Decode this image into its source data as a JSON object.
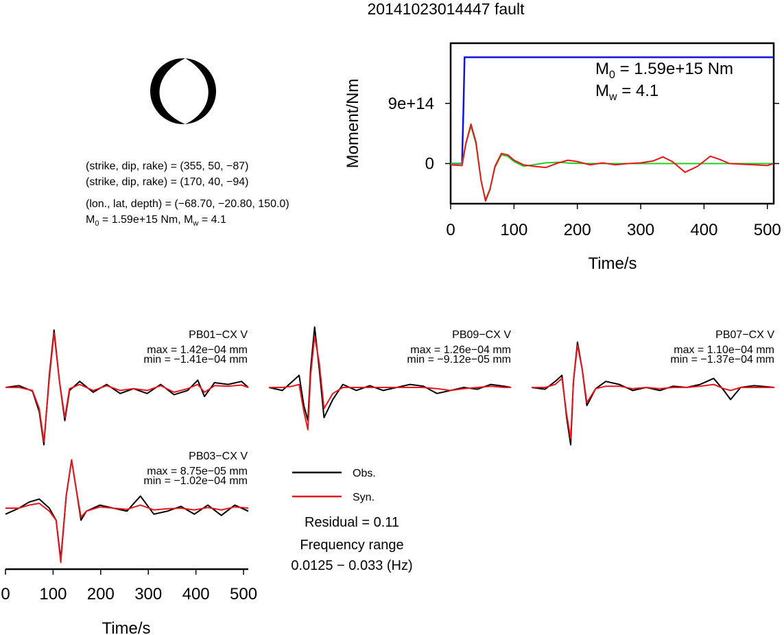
{
  "title": "20141023014447 fault",
  "colors": {
    "obs": "#000000",
    "syn": "#e8161b",
    "stf": "#1212d8",
    "fit": "#22cc22",
    "axis": "#000000"
  },
  "focal": {
    "lines": [
      "(strike, dip, rake) = (355, 50, −87)",
      "(strike, dip, rake) = (170, 40, −94)",
      "(lon., lat, depth) = (−68.70, −20.80, 150.0)"
    ],
    "moment_prefix": "M",
    "moment_sub": "0",
    "moment_mid": " = 1.59e+15 Nm, M",
    "moment_sub2": "w",
    "moment_end": " = 4.1"
  },
  "moment_panel": {
    "m0_main": "M",
    "m0_sub": "0",
    "m0_rest": " = 1.59e+15 Nm",
    "mw_main": "M",
    "mw_sub": "w",
    "mw_rest": " = 4.1"
  },
  "stations": [
    {
      "name": "PB01−CX V",
      "max": "max = 1.42e−04 mm",
      "min": "min = −1.41e−04 mm"
    },
    {
      "name": "PB09−CX V",
      "max": "max = 1.26e−04 mm",
      "min": "min = −9.12e−05 mm"
    },
    {
      "name": "PB07−CX V",
      "max": "max = 1.10e−04 mm",
      "min": "min = −1.37e−04 mm"
    },
    {
      "name": "PB03−CX V",
      "max": "max = 8.75e−05 mm",
      "min": "min = −1.02e−04 mm"
    }
  ],
  "legend": {
    "obs": "Obs.",
    "syn": "Syn."
  },
  "residual": "Residual = 0.11",
  "freq_label": "Frequency range",
  "freq_value": "0.0125 − 0.033 (Hz)",
  "chart_data": [
    {
      "type": "line",
      "xlabel": "Time/s",
      "ylabel": "Moment/Nm",
      "xlim": [
        0,
        510
      ],
      "ylim": [
        -600000000000000,
        1800000000000000
      ],
      "x_ticks": [
        0,
        100,
        200,
        300,
        400,
        500
      ],
      "x_tick_labels": [
        "0",
        "100",
        "200",
        "300",
        "400",
        "500"
      ],
      "y_ticks": [
        0,
        900000000000000
      ],
      "y_tick_labels": [
        "0",
        "9e+14"
      ],
      "series": [
        {
          "role": "cumulative_moment",
          "color": "#1212d8",
          "x": [
            0,
            18,
            20,
            22,
            510
          ],
          "y": [
            0,
            0,
            750000000000000,
            1590000000000000,
            1590000000000000
          ]
        },
        {
          "role": "moment_rate_model",
          "color": "#22cc22",
          "x": [
            0,
            18,
            24,
            32,
            40,
            48,
            55,
            62,
            70,
            80,
            90,
            100,
            115,
            130,
            150,
            170,
            190,
            220,
            260,
            300,
            510
          ],
          "y": [
            0,
            0,
            300000000000000,
            560000000000000,
            300000000000000,
            -250000000000000,
            -540000000000000,
            -380000000000000,
            -60000000000000,
            130000000000000,
            110000000000000,
            30000000000000,
            -40000000000000,
            -20000000000000,
            10000000000000,
            20000000000000,
            5000000000000,
            0,
            0,
            0,
            0
          ]
        },
        {
          "role": "moment_rate_observed",
          "color": "#e8161b",
          "x": [
            0,
            18,
            24,
            32,
            40,
            48,
            55,
            62,
            70,
            80,
            90,
            100,
            115,
            130,
            150,
            170,
            185,
            200,
            220,
            240,
            260,
            280,
            300,
            320,
            335,
            350,
            370,
            390,
            410,
            425,
            440,
            460,
            480,
            500,
            510
          ],
          "y": [
            -20000000000000,
            -30000000000000,
            300000000000000,
            590000000000000,
            320000000000000,
            -250000000000000,
            -560000000000000,
            -390000000000000,
            -40000000000000,
            150000000000000,
            130000000000000,
            50000000000000,
            -20000000000000,
            -40000000000000,
            -60000000000000,
            10000000000000,
            50000000000000,
            30000000000000,
            -20000000000000,
            10000000000000,
            -20000000000000,
            0,
            10000000000000,
            40000000000000,
            100000000000000,
            30000000000000,
            -130000000000000,
            -40000000000000,
            110000000000000,
            60000000000000,
            0,
            -10000000000000,
            -20000000000000,
            -30000000000000,
            0
          ]
        }
      ]
    },
    {
      "type": "line",
      "xlabel": "Time/s",
      "xlim": [
        0,
        510
      ],
      "x_ticks": [
        0,
        100,
        200,
        300,
        400,
        500
      ],
      "x_tick_labels": [
        "0",
        "100",
        "200",
        "300",
        "400",
        "500"
      ],
      "panels": [
        {
          "station": "PB01−CX V",
          "obs": {
            "x": [
              0,
              20,
              40,
              50,
              57,
              65,
              72,
              80,
              88,
              95,
              110,
              130,
              150,
              170,
              190,
              210,
              230,
              250,
              270,
              285,
              295,
              310,
              330,
              350,
              360
            ],
            "y": [
              0.0,
              0.03,
              -0.06,
              -0.4,
              -0.95,
              0.2,
              0.95,
              0.1,
              -0.55,
              -0.05,
              0.1,
              -0.08,
              0.05,
              -0.1,
              -0.02,
              -0.1,
              0.05,
              -0.12,
              -0.05,
              0.12,
              -0.15,
              0.08,
              0.05,
              0.1,
              0.0
            ]
          },
          "syn": {
            "x": [
              0,
              20,
              40,
              50,
              57,
              65,
              72,
              80,
              88,
              95,
              110,
              130,
              150,
              170,
              190,
              210,
              230,
              250,
              270,
              285,
              295,
              310,
              330,
              350,
              360
            ],
            "y": [
              0.0,
              0.0,
              -0.05,
              -0.35,
              -0.9,
              0.15,
              0.9,
              0.1,
              -0.5,
              -0.02,
              0.05,
              -0.05,
              0.03,
              -0.05,
              -0.02,
              -0.05,
              0.03,
              -0.08,
              -0.02,
              0.05,
              -0.08,
              0.03,
              0.02,
              0.04,
              0.0
            ]
          }
        },
        {
          "station": "PB09−CX V",
          "obs": {
            "x": [
              0,
              20,
              35,
              45,
              52,
              58,
              62,
              68,
              75,
              82,
              95,
              110,
              130,
              150,
              170,
              190,
              210,
              230,
              250,
              270,
              290,
              310,
              330,
              350,
              360
            ],
            "y": [
              0.0,
              -0.05,
              0.1,
              0.2,
              -0.3,
              -0.55,
              0.3,
              1.0,
              0.3,
              -0.5,
              -0.2,
              0.05,
              -0.05,
              0.03,
              -0.05,
              0.0,
              0.05,
              0.02,
              -0.1,
              -0.05,
              0.0,
              -0.03,
              0.05,
              0.02,
              0.0
            ]
          },
          "syn": {
            "x": [
              0,
              20,
              35,
              45,
              52,
              58,
              62,
              68,
              75,
              82,
              95,
              110,
              130,
              150,
              170,
              190,
              210,
              230,
              250,
              270,
              290,
              310,
              330,
              350,
              360
            ],
            "y": [
              0.0,
              0.0,
              0.02,
              0.05,
              -0.4,
              -0.7,
              0.2,
              0.85,
              0.4,
              -0.35,
              -0.1,
              0.0,
              0.0,
              0.0,
              0.0,
              0.0,
              0.0,
              0.0,
              -0.02,
              -0.05,
              -0.02,
              0.0,
              0.02,
              0.0,
              0.0
            ]
          }
        },
        {
          "station": "PB07−CX V",
          "obs": {
            "x": [
              0,
              20,
              35,
              45,
              52,
              58,
              62,
              68,
              75,
              82,
              95,
              110,
              130,
              150,
              170,
              190,
              210,
              230,
              250,
              270,
              285,
              295,
              310,
              330,
              360
            ],
            "y": [
              0.0,
              -0.03,
              0.1,
              0.2,
              -0.5,
              -0.95,
              0.1,
              0.75,
              0.3,
              -0.3,
              -0.02,
              0.1,
              0.05,
              -0.05,
              0.0,
              -0.05,
              0.02,
              0.0,
              0.05,
              0.15,
              -0.05,
              -0.2,
              0.0,
              0.03,
              0.0
            ]
          },
          "syn": {
            "x": [
              0,
              20,
              35,
              45,
              52,
              58,
              62,
              68,
              75,
              82,
              95,
              110,
              130,
              150,
              170,
              190,
              210,
              230,
              250,
              270,
              285,
              295,
              310,
              330,
              360
            ],
            "y": [
              0.0,
              0.0,
              0.05,
              0.15,
              -0.45,
              -0.85,
              0.1,
              0.7,
              0.3,
              -0.25,
              -0.02,
              0.02,
              0.02,
              -0.02,
              0.0,
              -0.02,
              0.0,
              0.0,
              0.02,
              0.05,
              -0.02,
              -0.05,
              0.0,
              0.0,
              0.0
            ]
          }
        },
        {
          "station": "PB03−CX V",
          "obs": {
            "x": [
              0,
              20,
              35,
              50,
              65,
              75,
              82,
              90,
              98,
              105,
              112,
              120,
              140,
              160,
              180,
              200,
              220,
              240,
              260,
              280,
              300,
              320,
              340,
              360
            ],
            "y": [
              -0.1,
              0.0,
              0.1,
              0.15,
              0.0,
              -0.2,
              -0.85,
              0.2,
              0.8,
              0.3,
              -0.2,
              -0.05,
              0.05,
              0.0,
              -0.05,
              0.2,
              -0.1,
              -0.05,
              0.03,
              -0.1,
              0.05,
              -0.12,
              0.05,
              -0.05
            ]
          },
          "syn": {
            "x": [
              0,
              20,
              35,
              50,
              65,
              75,
              82,
              90,
              98,
              105,
              112,
              120,
              140,
              160,
              180,
              200,
              220,
              240,
              260,
              280,
              300,
              320,
              340,
              360
            ],
            "y": [
              0.0,
              0.0,
              0.05,
              0.08,
              -0.05,
              -0.2,
              -0.9,
              0.2,
              0.8,
              0.3,
              -0.15,
              -0.05,
              0.02,
              0.0,
              -0.02,
              0.05,
              -0.03,
              -0.01,
              0.0,
              -0.03,
              0.01,
              -0.03,
              0.02,
              0.0
            ]
          }
        }
      ]
    }
  ]
}
